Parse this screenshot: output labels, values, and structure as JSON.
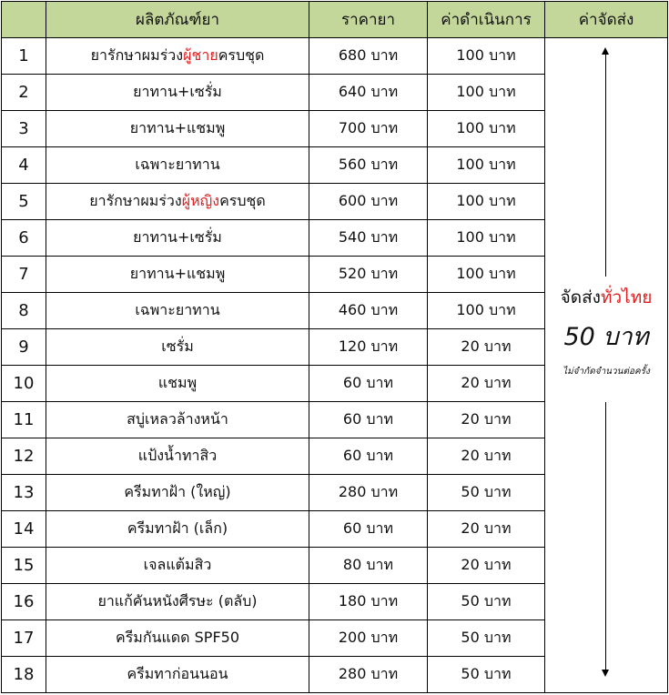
{
  "headers": [
    "",
    "ผลิตภัณฑ์ยา",
    "ราคายา",
    "ค่าดำเนินการ",
    "ค่าจัดส่ง"
  ],
  "rows": [
    {
      "no": "1",
      "name": [
        {
          "t": "ยารักษาผมร่วง"
        },
        {
          "t": "ผู้ชาย",
          "red": true
        },
        {
          "t": "ครบชุด"
        }
      ],
      "price": "680 บาท",
      "fee": "100 บาท"
    },
    {
      "no": "2",
      "name": [
        {
          "t": "ยาทาน+เซรั่ม"
        }
      ],
      "price": "640 บาท",
      "fee": "100 บาท"
    },
    {
      "no": "3",
      "name": [
        {
          "t": "ยาทาน+แชมพู"
        }
      ],
      "price": "700 บาท",
      "fee": "100 บาท"
    },
    {
      "no": "4",
      "name": [
        {
          "t": "เฉพาะยาทาน"
        }
      ],
      "price": "560 บาท",
      "fee": "100 บาท"
    },
    {
      "no": "5",
      "name": [
        {
          "t": "ยารักษาผมร่วง"
        },
        {
          "t": "ผู้หญิง",
          "red": true
        },
        {
          "t": "ครบชุด"
        }
      ],
      "price": "600 บาท",
      "fee": "100 บาท"
    },
    {
      "no": "6",
      "name": [
        {
          "t": "ยาทาน+เซรั่ม"
        }
      ],
      "price": "540 บาท",
      "fee": "100 บาท"
    },
    {
      "no": "7",
      "name": [
        {
          "t": "ยาทาน+แชมพู"
        }
      ],
      "price": "520 บาท",
      "fee": "100 บาท"
    },
    {
      "no": "8",
      "name": [
        {
          "t": "เฉพาะยาทาน"
        }
      ],
      "price": "460 บาท",
      "fee": "100 บาท"
    },
    {
      "no": "9",
      "name": [
        {
          "t": "เซรั่ม"
        }
      ],
      "price": "120 บาท",
      "fee": "20 บาท"
    },
    {
      "no": "10",
      "name": [
        {
          "t": "แชมพู"
        }
      ],
      "price": "60 บาท",
      "fee": "20 บาท"
    },
    {
      "no": "11",
      "name": [
        {
          "t": "สบู่เหลวล้างหน้า"
        }
      ],
      "price": "60 บาท",
      "fee": "20 บาท"
    },
    {
      "no": "12",
      "name": [
        {
          "t": "แป้งน้ำทาสิว"
        }
      ],
      "price": "60 บาท",
      "fee": "20 บาท"
    },
    {
      "no": "13",
      "name": [
        {
          "t": "ครีมทาฝ้า (ใหญ่)"
        }
      ],
      "price": "280 บาท",
      "fee": "50 บาท"
    },
    {
      "no": "14",
      "name": [
        {
          "t": "ครีมทาฝ้า (เล็ก)"
        }
      ],
      "price": "60 บาท",
      "fee": "20 บาท"
    },
    {
      "no": "15",
      "name": [
        {
          "t": "เจลแต้มสิว"
        }
      ],
      "price": "80 บาท",
      "fee": "20 บาท"
    },
    {
      "no": "16",
      "name": [
        {
          "t": "ยาแก้คันหนังศีรษะ (ตลับ)"
        }
      ],
      "price": "180 บาท",
      "fee": "50 บาท"
    },
    {
      "no": "17",
      "name": [
        {
          "t": "ครีมกันแดด SPF50"
        }
      ],
      "price": "200 บาท",
      "fee": "50 บาท"
    },
    {
      "no": "18",
      "name": [
        {
          "t": "ครีมทาก่อนนอน"
        }
      ],
      "price": "280 บาท",
      "fee": "50 บาท"
    }
  ],
  "shipping": {
    "line1": "จัดส่ง",
    "line1_red": "ทั่วไทย",
    "amount": "50 บาท",
    "note": "ไม่จำกัดจำนวนต่อครั้ง"
  },
  "colors": {
    "header_bg": "#c4d79b",
    "highlight": "#e02020"
  }
}
